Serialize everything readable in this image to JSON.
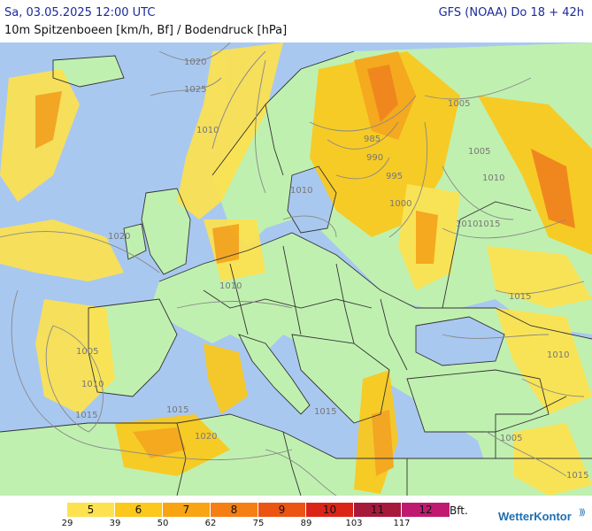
{
  "header": {
    "datetime": "Sa, 03.05.2025 12:00 UTC",
    "model": "GFS (NOAA) Do 18 + 42h",
    "variable": "10m Spitzenboeen [km/h, Bf] / Bodendruck [hPa]"
  },
  "map": {
    "region": "Europe",
    "colors": {
      "sea": "#a9c8f0",
      "land": "#c0f0b0",
      "border": "#333333",
      "isobar": "#888888"
    },
    "isobar_labels": [
      "1020",
      "1025",
      "1010",
      "1005",
      "985",
      "990",
      "995",
      "1000",
      "1005",
      "1010",
      "1020",
      "1005",
      "1015",
      "1010",
      "1010",
      "1015",
      "1010",
      "1015",
      "1015",
      "1020",
      "1015",
      "1010",
      "1005",
      "1015",
      "1010"
    ]
  },
  "legend": {
    "unit": "Bft.",
    "classes": [
      {
        "bft": "",
        "color": "#ffffff"
      },
      {
        "bft": "5",
        "color": "#fde24f"
      },
      {
        "bft": "6",
        "color": "#fbc81b"
      },
      {
        "bft": "7",
        "color": "#f9a413"
      },
      {
        "bft": "8",
        "color": "#f57f12"
      },
      {
        "bft": "9",
        "color": "#ec5412"
      },
      {
        "bft": "10",
        "color": "#dc2318"
      },
      {
        "bft": "11",
        "color": "#a7193b"
      },
      {
        "bft": "12",
        "color": "#c01a70"
      }
    ],
    "kmh_ticks": [
      "29",
      "39",
      "50",
      "62",
      "75",
      "89",
      "103",
      "117"
    ]
  },
  "brand": {
    "name": "WetterKontor",
    "icon": "signal-waves-icon"
  }
}
